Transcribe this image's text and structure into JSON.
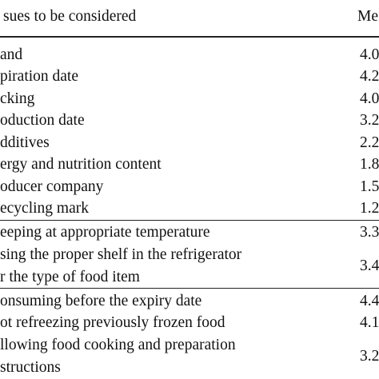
{
  "table": {
    "header": [
      "sues to be considered",
      "Me"
    ],
    "rows": [
      {
        "label": [
          "and"
        ],
        "value": "4.0"
      },
      {
        "label": [
          "piration date"
        ],
        "value": "4.2"
      },
      {
        "label": [
          "cking"
        ],
        "value": "4.0"
      },
      {
        "label": [
          "oduction date"
        ],
        "value": "3.2"
      },
      {
        "label": [
          "dditives"
        ],
        "value": "2.2"
      },
      {
        "label": [
          "ergy and nutrition content"
        ],
        "value": "1.8"
      },
      {
        "label": [
          "oducer company"
        ],
        "value": "1.5"
      },
      {
        "label": [
          "ecycling mark"
        ],
        "value": "1.2"
      },
      {
        "label": [
          "eeping at appropriate temperature"
        ],
        "value": "3.3"
      },
      {
        "label": [
          "sing the proper shelf in the refrigerator",
          "r the type of food item"
        ],
        "value": "3.4"
      },
      {
        "label": [
          "onsuming before the expiry date"
        ],
        "value": "4.4"
      },
      {
        "label": [
          "ot refreezing previously frozen food"
        ],
        "value": "4.1"
      },
      {
        "label": [
          "llowing food cooking and preparation",
          "structions"
        ],
        "value": "3.2"
      }
    ]
  }
}
